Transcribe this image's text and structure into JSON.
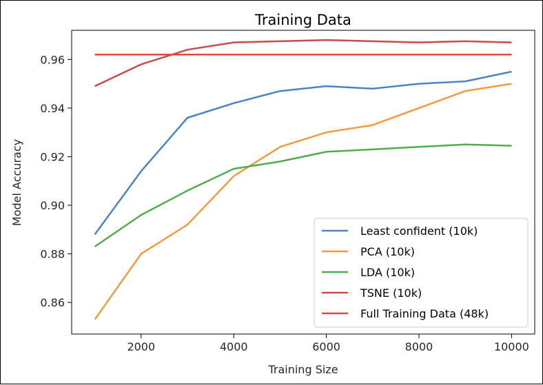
{
  "chart_data": {
    "type": "line",
    "title": "Training Data",
    "xlabel": "Training Size",
    "ylabel": "Model Accuracy",
    "xlim": [
      500,
      10500
    ],
    "ylim": [
      0.847,
      0.972
    ],
    "xticks": [
      2000,
      4000,
      6000,
      8000,
      10000
    ],
    "yticks": [
      0.86,
      0.88,
      0.9,
      0.92,
      0.94,
      0.96
    ],
    "ytick_labels": [
      "0.86",
      "0.88",
      "0.90",
      "0.92",
      "0.94",
      "0.96"
    ],
    "grid": false,
    "legend_position": "lower-right",
    "series": [
      {
        "name": "Least confident (10k)",
        "color": "#4a84c4",
        "x": [
          1000,
          2000,
          3000,
          4000,
          5000,
          6000,
          7000,
          8000,
          9000,
          10000
        ],
        "y": [
          0.888,
          0.914,
          0.936,
          0.942,
          0.947,
          0.949,
          0.948,
          0.95,
          0.951,
          0.955
        ]
      },
      {
        "name": "PCA (10k)",
        "color": "#f39a3a",
        "x": [
          1000,
          2000,
          3000,
          4000,
          5000,
          6000,
          7000,
          8000,
          9000,
          10000
        ],
        "y": [
          0.853,
          0.88,
          0.892,
          0.912,
          0.924,
          0.93,
          0.933,
          0.94,
          0.947,
          0.95
        ]
      },
      {
        "name": "LDA (10k)",
        "color": "#4cae4c",
        "x": [
          1000,
          2000,
          3000,
          4000,
          5000,
          6000,
          7000,
          8000,
          9000,
          10000
        ],
        "y": [
          0.883,
          0.896,
          0.906,
          0.915,
          0.918,
          0.922,
          0.923,
          0.924,
          0.925,
          0.9245
        ]
      },
      {
        "name": "TSNE (10k)",
        "color": "#c94a4a",
        "x": [
          1000,
          2000,
          3000,
          4000,
          5000,
          6000,
          7000,
          8000,
          9000,
          10000
        ],
        "y": [
          0.949,
          0.958,
          0.964,
          0.967,
          0.9675,
          0.968,
          0.9675,
          0.967,
          0.9675,
          0.967
        ]
      },
      {
        "name": "Full Training Data (48k)",
        "color": "#e8453c",
        "x": [
          1000,
          10000
        ],
        "y": [
          0.962,
          0.962
        ]
      }
    ]
  }
}
